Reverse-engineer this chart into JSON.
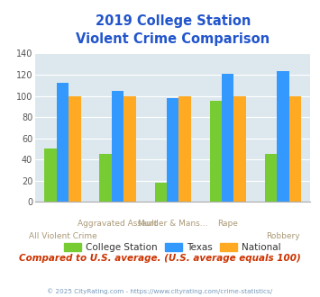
{
  "title_line1": "2019 College Station",
  "title_line2": "Violent Crime Comparison",
  "categories": [
    "All Violent Crime",
    "Aggravated Assault",
    "Murder & Mans...",
    "Rape",
    "Robbery"
  ],
  "series": {
    "College Station": [
      50,
      45,
      18,
      95,
      45
    ],
    "Texas": [
      112,
      105,
      98,
      121,
      123
    ],
    "National": [
      100,
      100,
      100,
      100,
      100
    ]
  },
  "colors": {
    "College Station": "#77cc33",
    "Texas": "#3399ff",
    "National": "#ffaa22"
  },
  "ylim": [
    0,
    140
  ],
  "yticks": [
    0,
    20,
    40,
    60,
    80,
    100,
    120,
    140
  ],
  "title_color": "#2255cc",
  "subtitle_text": "Compared to U.S. average. (U.S. average equals 100)",
  "subtitle_color": "#cc3300",
  "footer_text": "© 2025 CityRating.com - https://www.cityrating.com/crime-statistics/",
  "footer_color": "#7799bb",
  "plot_bg_color": "#dde8ee",
  "xlabel_color": "#aa9977",
  "bar_width": 0.22,
  "xtick_top": [
    "",
    "Aggravated Assault",
    "Murder & Mans...",
    "Rape",
    ""
  ],
  "xtick_bot": [
    "All Violent Crime",
    "",
    "",
    "",
    "Robbery"
  ]
}
